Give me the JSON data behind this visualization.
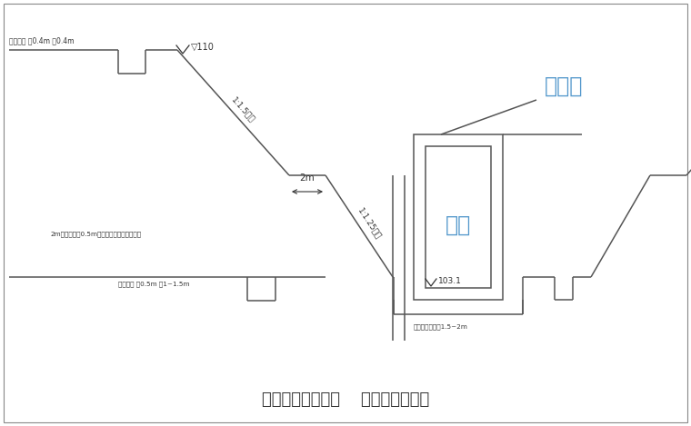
{
  "bg_color": "#ffffff",
  "line_color": "#555555",
  "text_color": "#333333",
  "label_color": "#5599cc",
  "title": "需要时增加松木桩    边坡加固示意图",
  "ann_drain_top": "排水明沟 深0.4m 宽0.4m",
  "ann_water_mark": "▽110",
  "ann_slope1": "1:1.5坡坡",
  "ann_berm": "2m",
  "ann_slope2": "1:1.25坡坡",
  "ann_pile_note": "2m长木桩间距0.5m插入边坡上用竹篾固固桩",
  "ann_drain_bot": "排水明沟 深0.5m 宽1~1.5m",
  "ann_base_width": "脚手架搭设宽度1.5~2m",
  "ann_qushui": "引水渠",
  "ann_jikeng": "基坑",
  "ann_elevation": "103.1"
}
